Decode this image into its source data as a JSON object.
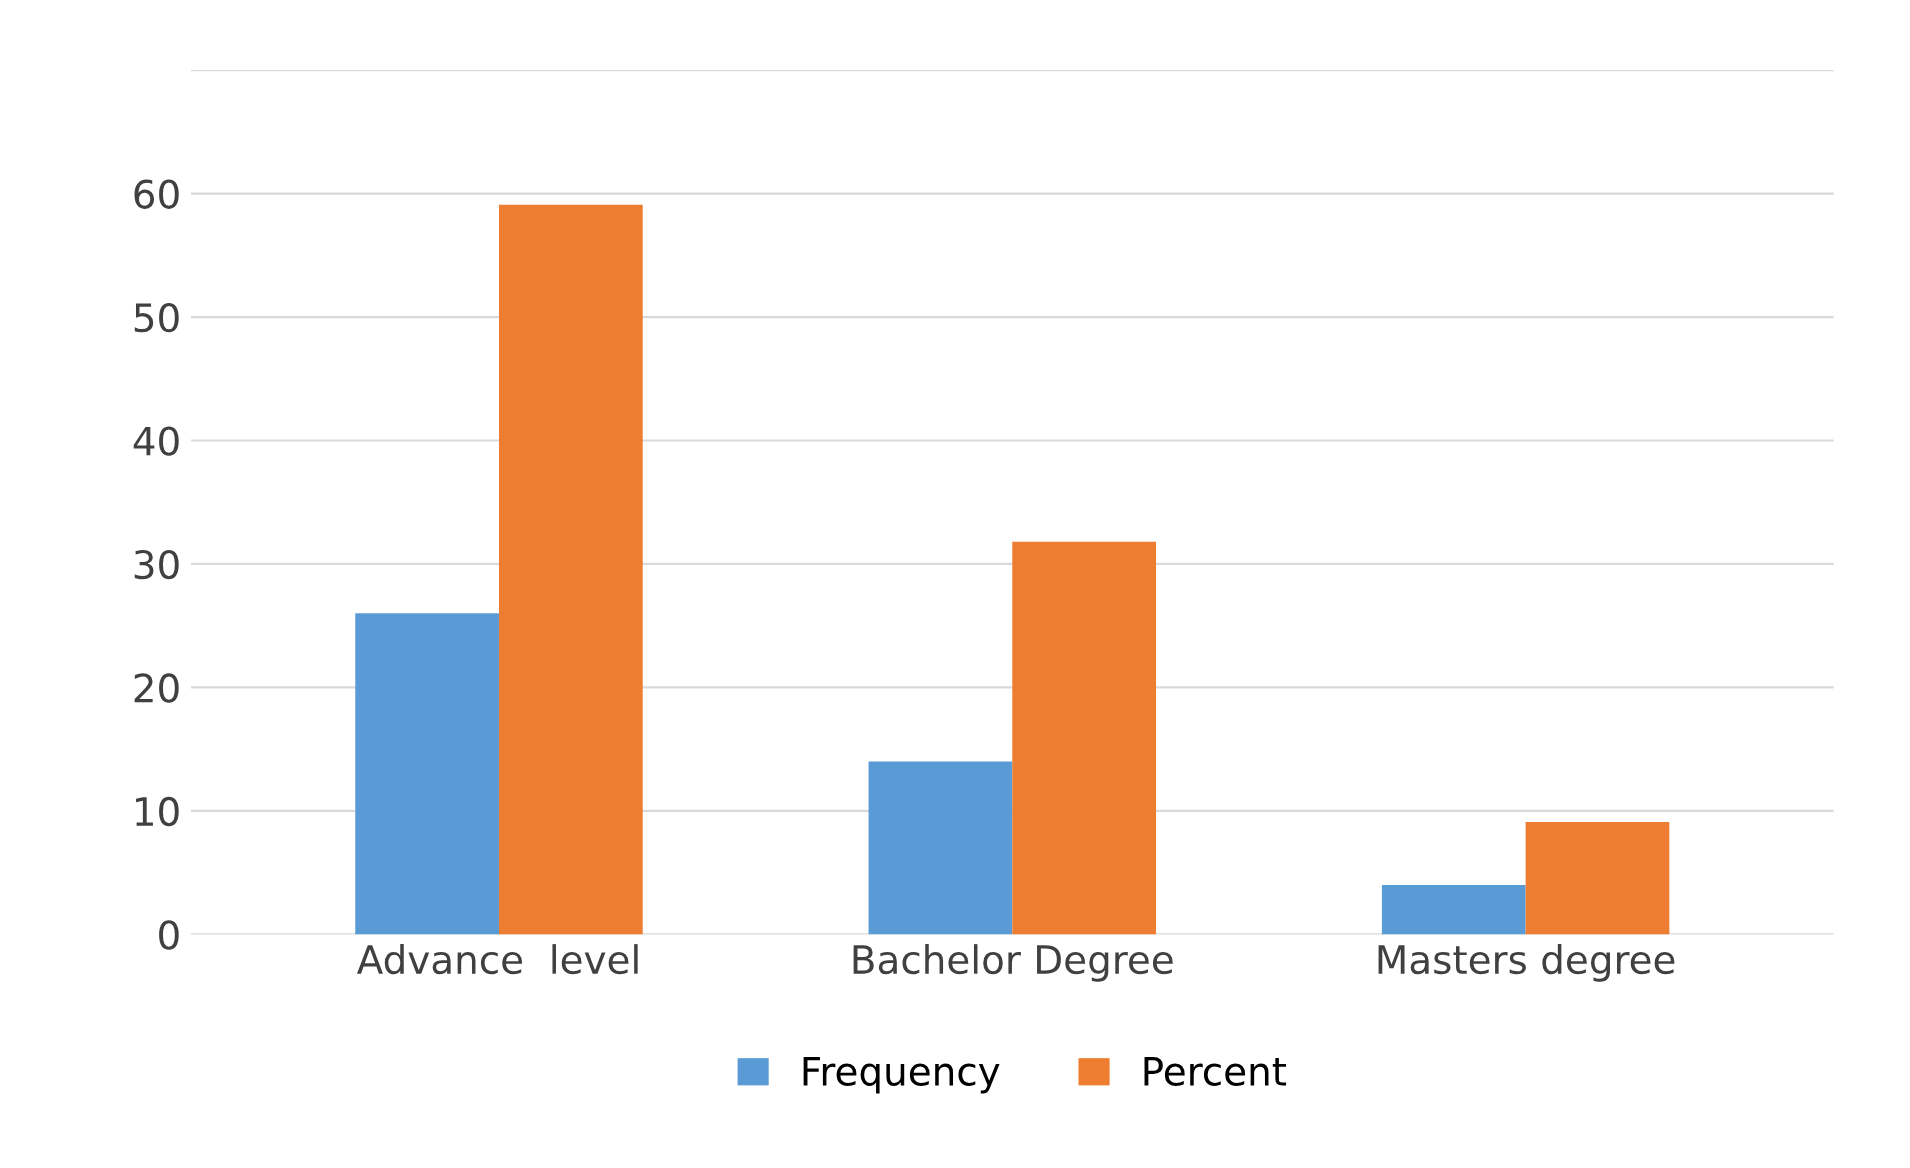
{
  "chart_data": {
    "type": "bar",
    "categories": [
      "Advance  level",
      "Bachelor Degree",
      "Masters degree"
    ],
    "series": [
      {
        "name": "Frequency",
        "color": "#5b9bd5",
        "values": [
          26,
          14,
          4
        ]
      },
      {
        "name": "Percent",
        "color": "#ed7d31",
        "values": [
          59.1,
          31.8,
          9.1
        ]
      }
    ],
    "ylim": [
      0,
      70
    ],
    "yticks": [
      0,
      10,
      20,
      30,
      40,
      50,
      60,
      {
        "value": 70,
        "label": null
      }
    ],
    "grid": "y",
    "legend": "bottom"
  }
}
